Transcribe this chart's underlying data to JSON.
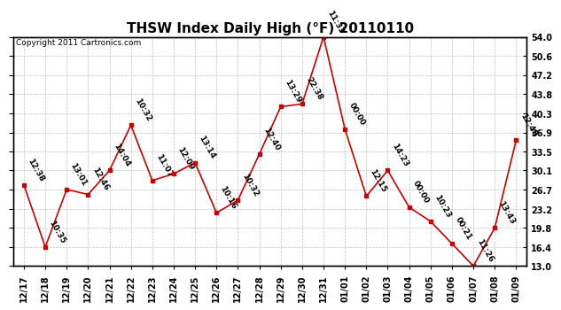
{
  "title": "THSW Index Daily High (°F) 20110110",
  "copyright": "Copyright 2011 Cartronics.com",
  "x_labels": [
    "12/17",
    "12/18",
    "12/19",
    "12/20",
    "12/21",
    "12/22",
    "12/23",
    "12/24",
    "12/25",
    "12/26",
    "12/27",
    "12/28",
    "12/29",
    "12/30",
    "12/31",
    "01/01",
    "01/02",
    "01/03",
    "01/04",
    "01/05",
    "01/06",
    "01/07",
    "01/08",
    "01/09"
  ],
  "y_values": [
    27.5,
    16.4,
    26.7,
    25.8,
    30.1,
    38.2,
    28.3,
    29.5,
    31.5,
    22.5,
    24.8,
    33.0,
    41.5,
    42.0,
    54.0,
    37.5,
    25.5,
    30.1,
    23.5,
    21.0,
    17.0,
    13.0,
    19.8,
    35.5
  ],
  "time_labels": [
    "12:38",
    "10:35",
    "13:01",
    "12:46",
    "14:04",
    "10:32",
    "11:07",
    "12:09",
    "13:14",
    "10:16",
    "10:32",
    "12:40",
    "13:29",
    "22:38",
    "11:33",
    "00:00",
    "12:15",
    "14:23",
    "00:00",
    "10:23",
    "00:21",
    "11:26",
    "13:43",
    "12:48"
  ],
  "y_ticks": [
    13.0,
    16.4,
    19.8,
    23.2,
    26.7,
    30.1,
    33.5,
    36.9,
    40.3,
    43.8,
    47.2,
    50.6,
    54.0
  ],
  "ylim": [
    13.0,
    54.0
  ],
  "line_color": "#cc0000",
  "marker_color": "#cc0000",
  "bg_color": "#ffffff",
  "grid_color": "#c0c0c0",
  "title_fontsize": 11,
  "label_fontsize": 6.5,
  "tick_fontsize": 7,
  "copyright_fontsize": 6.5
}
